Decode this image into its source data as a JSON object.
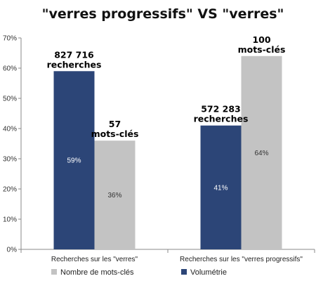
{
  "chart_data": {
    "type": "bar",
    "title": "\"verres progressifs\"  VS  \"verres\"",
    "categories": [
      "Recherches sur les  \"verres\"",
      "Recherches sur les \"verres progressifs\""
    ],
    "series": [
      {
        "name": "Volumétrie",
        "color": "#2c4577",
        "values": [
          59,
          41
        ],
        "labels": [
          "59%",
          "41%"
        ]
      },
      {
        "name": "Nombre de mots-clés",
        "color": "#c3c3c3",
        "values": [
          36,
          64
        ],
        "labels": [
          "36%",
          "64%"
        ]
      }
    ],
    "annotations": [
      {
        "category": 0,
        "series": 0,
        "lines": [
          "827 716",
          "recherches"
        ]
      },
      {
        "category": 0,
        "series": 1,
        "lines": [
          "57",
          "mots-clés"
        ]
      },
      {
        "category": 1,
        "series": 0,
        "lines": [
          "572 283",
          "recherches"
        ]
      },
      {
        "category": 1,
        "series": 1,
        "lines": [
          "100",
          "mots-clés"
        ]
      }
    ],
    "yticks": [
      "0%",
      "10%",
      "20%",
      "30%",
      "40%",
      "50%",
      "60%",
      "70%"
    ],
    "ylim": [
      0,
      70
    ],
    "grid": false,
    "legend_position": "bottom"
  }
}
